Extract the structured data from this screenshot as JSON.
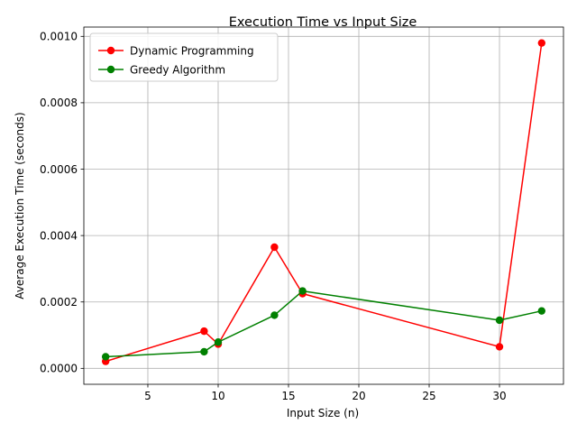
{
  "chart_data": {
    "type": "line",
    "title": "Execution Time vs Input Size",
    "xlabel": "Input Size (n)",
    "ylabel": "Average Execution Time (seconds)",
    "xlim": [
      0.45,
      34.55
    ],
    "ylim": [
      -4.8e-05,
      0.001028
    ],
    "x_ticks": [
      5,
      10,
      15,
      20,
      25,
      30
    ],
    "x_tick_labels": [
      "5",
      "10",
      "15",
      "20",
      "25",
      "30"
    ],
    "y_ticks": [
      0.0,
      0.0002,
      0.0004,
      0.0006,
      0.0008,
      0.001
    ],
    "y_tick_labels": [
      "0.0000",
      "0.0002",
      "0.0004",
      "0.0006",
      "0.0008",
      "0.0010"
    ],
    "grid": true,
    "legend_position": "upper-left",
    "series": [
      {
        "name": "Dynamic Programming",
        "color": "#ff0000",
        "x": [
          2,
          9,
          10,
          14,
          16,
          30,
          33
        ],
        "y": [
          2.1e-05,
          0.000112,
          7.3e-05,
          0.000365,
          0.000225,
          6.5e-05,
          0.00098
        ]
      },
      {
        "name": "Greedy Algorithm",
        "color": "#008000",
        "x": [
          2,
          9,
          10,
          14,
          16,
          30,
          33
        ],
        "y": [
          3.5e-05,
          5e-05,
          7.9e-05,
          0.00016,
          0.000233,
          0.000145,
          0.000173
        ]
      }
    ]
  }
}
